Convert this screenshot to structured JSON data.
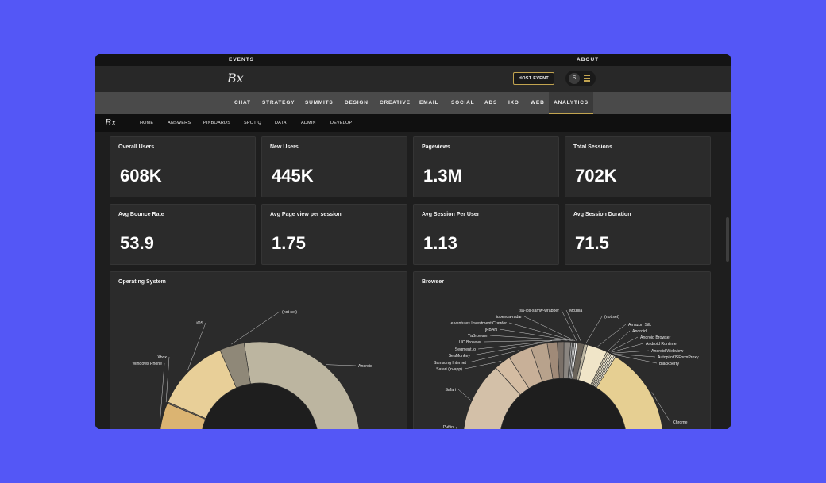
{
  "top_links": {
    "events": "EVENTS",
    "about": "ABOUT"
  },
  "brand": {
    "logo": "Bx"
  },
  "header": {
    "host_event": "HOST EVENT",
    "user_initial": "S"
  },
  "main_nav": [
    "CHAT",
    "STRATEGY",
    "SUMMITS",
    "DESIGN",
    "CREATIVE",
    "EMAIL",
    "SOCIAL",
    "ADS",
    "IXO",
    "WEB",
    "ANALYTICS"
  ],
  "main_nav_active": "ANALYTICS",
  "sub_nav": [
    "HOME",
    "ANSWERS",
    "PINBOARDS",
    "SPOTIQ",
    "DATA",
    "ADMIN",
    "DEVELOP"
  ],
  "sub_nav_active": "PINBOARDS",
  "kpis": [
    {
      "label": "Overall Users",
      "value": "608K"
    },
    {
      "label": "New Users",
      "value": "445K"
    },
    {
      "label": "Pageviews",
      "value": "1.3M"
    },
    {
      "label": "Total Sessions",
      "value": "702K"
    },
    {
      "label": "Avg Bounce Rate",
      "value": "53.9"
    },
    {
      "label": "Avg Page view per session",
      "value": "1.75"
    },
    {
      "label": "Avg Session Per User",
      "value": "1.13"
    },
    {
      "label": "Avg Session Duration",
      "value": "71.5"
    }
  ],
  "chart_data": [
    {
      "type": "pie",
      "title": "Operating System",
      "categories": [
        "Android",
        "(not set)",
        "iOS",
        "Xbox",
        "Windows Phone"
      ],
      "shares_pct_of_visible_ring": [
        55,
        8,
        24,
        0.5,
        12.5
      ],
      "colors": [
        "#bcb5a0",
        "#8f8878",
        "#e8cf98",
        "#6e665a",
        "#dbb472"
      ]
    },
    {
      "type": "pie",
      "title": "Browser",
      "categories": [
        "Chrome",
        "BlackBerry",
        "AutopilotJSFormProxy",
        "Android Webview",
        "Android Runtime",
        "Android Browser",
        "Android",
        "Amazon Silk",
        "(not set)",
        "'Mozilla",
        "sa-ios-samw-wrapper",
        "iubenda-radar",
        "e.ventures Investment Crawler",
        "[FBAN",
        "YaBrowser",
        "UC Browser",
        "Segment.io",
        "SeaMonkey",
        "Samsung Internet",
        "Safari (in-app)",
        "Safari",
        "Puffin"
      ],
      "shares_pct_of_visible_ring": [
        30,
        0.5,
        0.5,
        0.5,
        0.5,
        0.5,
        0.5,
        6,
        1,
        2,
        0.5,
        0.5,
        0.5,
        0.5,
        2,
        2,
        3,
        5,
        7,
        5,
        24,
        0.5
      ],
      "colors": [
        "#e6cf92",
        "#f1ead4",
        "#f1ead4",
        "#f1ead4",
        "#f1ead4",
        "#ece2c8",
        "#ddd3b8",
        "#f0e5c8",
        "#bdb6a2",
        "#6b645a",
        "#f4f4f4",
        "#c8c8c8",
        "#b5b5b5",
        "#9d9d9d",
        "#8a8580",
        "#7a7068",
        "#a08a78",
        "#b8a28c",
        "#c8b098",
        "#d4bca2",
        "#d3c0a8",
        "#c9b59d"
      ]
    }
  ]
}
